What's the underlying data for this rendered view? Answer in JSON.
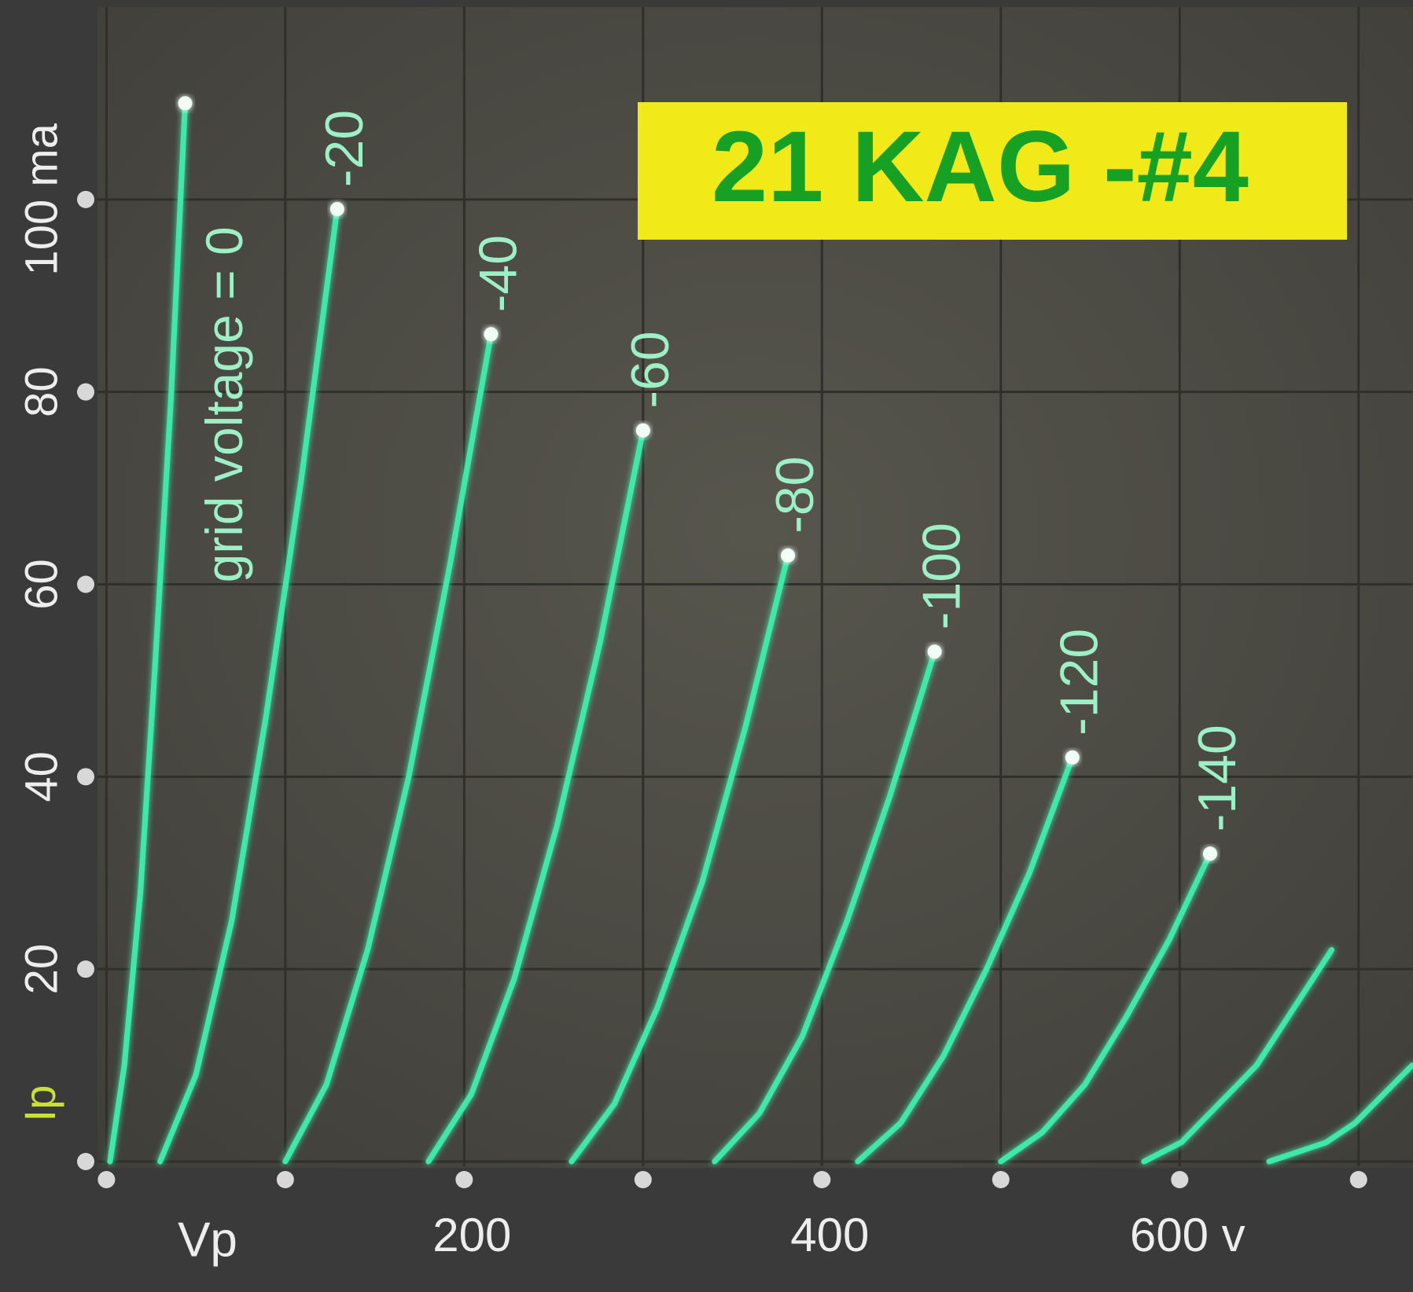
{
  "chart_data": {
    "type": "line",
    "title": "21 KAG -#4",
    "x_label": "Vp",
    "y_label": "Ip",
    "xlim": [
      -5,
      730
    ],
    "ylim": [
      0,
      120
    ],
    "xticks": [
      {
        "value": 0,
        "label": null
      },
      {
        "value": 100,
        "label": null
      },
      200,
      {
        "value": 300,
        "label": null
      },
      400,
      {
        "value": 500,
        "label": null
      },
      {
        "value": 600,
        "label": "600 v"
      },
      {
        "value": 700,
        "label": null
      }
    ],
    "yticks": [
      {
        "value": 0,
        "label": null
      },
      20,
      40,
      60,
      80,
      {
        "value": 100,
        "label": "100 ma"
      }
    ],
    "grid": true,
    "series": [
      {
        "name": "grid voltage = 0",
        "color": "#3fe8a8",
        "x": [
          2,
          10,
          19,
          27,
          36,
          44
        ],
        "values": [
          0,
          10,
          28,
          51,
          79,
          110
        ]
      },
      {
        "name": "-20",
        "color": "#3fe8a8",
        "x": [
          30,
          50,
          70,
          89,
          109,
          129
        ],
        "values": [
          0,
          9,
          25,
          46,
          71,
          99
        ]
      },
      {
        "name": "-40",
        "color": "#3fe8a8",
        "x": [
          100,
          123,
          146,
          169,
          192,
          215
        ],
        "values": [
          0,
          8,
          22,
          40,
          62,
          86
        ]
      },
      {
        "name": "-60",
        "color": "#3fe8a8",
        "x": [
          180,
          204,
          228,
          252,
          276,
          300
        ],
        "values": [
          0,
          7,
          19,
          35,
          54,
          76
        ]
      },
      {
        "name": "-80",
        "color": "#3fe8a8",
        "x": [
          260,
          284,
          308,
          333,
          357,
          381
        ],
        "values": [
          0,
          6,
          16,
          29,
          45,
          63
        ]
      },
      {
        "name": "-100",
        "color": "#3fe8a8",
        "x": [
          340,
          365,
          389,
          414,
          438,
          463
        ],
        "values": [
          0,
          5,
          13,
          25,
          38,
          53
        ]
      },
      {
        "name": "-120",
        "color": "#3fe8a8",
        "x": [
          420,
          444,
          468,
          492,
          516,
          540
        ],
        "values": [
          0,
          4,
          11,
          20,
          30,
          42
        ]
      },
      {
        "name": "-140",
        "color": "#3fe8a8",
        "x": [
          500,
          523,
          547,
          570,
          594,
          617
        ],
        "values": [
          0,
          3,
          8,
          15,
          23,
          32
        ]
      },
      {
        "color": "#3fe8a8",
        "x": [
          580,
          601,
          622,
          643,
          664,
          685
        ],
        "values": [
          0,
          2,
          6,
          10,
          16,
          22
        ]
      },
      {
        "color": "#3fe8a8",
        "x": [
          650,
          666,
          682,
          698,
          714,
          730
        ],
        "values": [
          0,
          1,
          2,
          4,
          7,
          10
        ]
      }
    ]
  }
}
